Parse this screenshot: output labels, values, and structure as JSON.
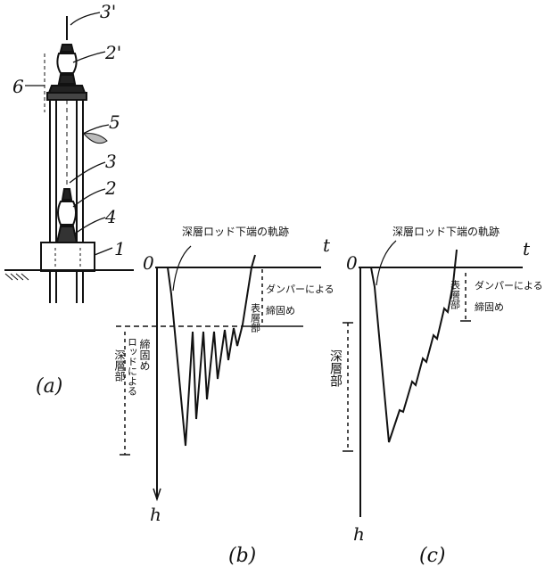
{
  "fig_a": {
    "caption": "(a)",
    "labels": {
      "n3p": "3'",
      "n2p": "2'",
      "n6": "6",
      "n5": "5",
      "n3": "3",
      "n2": "2",
      "n4": "4",
      "n1": "1"
    }
  },
  "fig_b": {
    "caption": "(b)",
    "origin": "0",
    "t_axis": "t",
    "h_axis": "h",
    "trace_label": "深層ロッド下端の軌跡",
    "right_label_1": "ダンパーによる",
    "right_label_2": "締固め",
    "right_label_3": "表層部",
    "left_label_1": "締固め",
    "left_label_2": "ロッドによる",
    "left_label_3": "深層部"
  },
  "fig_c": {
    "caption": "(c)",
    "origin": "0",
    "t_axis": "t",
    "h_axis": "h",
    "trace_label": "深層ロッド下端の軌跡",
    "right_label_1": "ダンパーによる",
    "right_label_2": "締固め",
    "right_label_3": "表層部",
    "left_label": "深層部"
  }
}
